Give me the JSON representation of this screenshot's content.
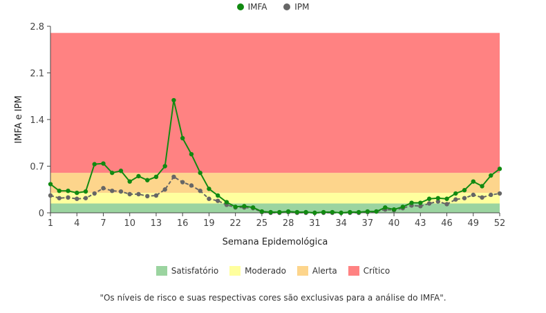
{
  "chart_data": {
    "type": "line",
    "xlabel": "Semana Epidemológica",
    "ylabel": "IMFA e IPM",
    "x_ticks": [
      1,
      4,
      7,
      10,
      13,
      16,
      19,
      22,
      25,
      28,
      31,
      34,
      37,
      40,
      43,
      46,
      49,
      52
    ],
    "y_ticks": [
      0,
      0.7,
      1.4,
      2.1,
      2.8
    ],
    "y_tick_labels": [
      "0",
      "0.7",
      "1.4",
      "2.1",
      "2.8"
    ],
    "xlim": [
      1,
      52
    ],
    "ylim": [
      0,
      2.8
    ],
    "risk_bands": [
      {
        "name": "Satisfatório",
        "from": 0,
        "to": 0.14,
        "color": "#9bd4a0"
      },
      {
        "name": "Moderado",
        "from": 0.14,
        "to": 0.3,
        "color": "#ffff9e"
      },
      {
        "name": "Alerta",
        "from": 0.3,
        "to": 0.6,
        "color": "#fdd58c"
      },
      {
        "name": "Crítico",
        "from": 0.6,
        "to": 2.7,
        "color": "#ff8282"
      }
    ],
    "series": [
      {
        "name": "IMFA",
        "color": "#118a11",
        "style": "solid",
        "x": [
          1,
          2,
          3,
          4,
          5,
          6,
          7,
          8,
          9,
          10,
          11,
          12,
          13,
          14,
          15,
          16,
          17,
          18,
          19,
          20,
          21,
          22,
          23,
          24,
          25,
          26,
          27,
          28,
          29,
          30,
          31,
          32,
          33,
          34,
          35,
          36,
          37,
          38,
          39,
          40,
          41,
          42,
          43,
          44,
          45,
          46,
          47,
          48,
          49,
          50,
          51,
          52
        ],
        "values": [
          0.43,
          0.33,
          0.33,
          0.3,
          0.32,
          0.73,
          0.74,
          0.6,
          0.63,
          0.47,
          0.55,
          0.49,
          0.54,
          0.7,
          1.69,
          1.12,
          0.88,
          0.6,
          0.36,
          0.26,
          0.16,
          0.09,
          0.1,
          0.08,
          0.02,
          0.01,
          0.01,
          0.02,
          0.01,
          0.01,
          0.0,
          0.01,
          0.01,
          0.0,
          0.01,
          0.01,
          0.02,
          0.02,
          0.08,
          0.05,
          0.09,
          0.15,
          0.15,
          0.21,
          0.22,
          0.21,
          0.29,
          0.34,
          0.47,
          0.4,
          0.56,
          0.66
        ]
      },
      {
        "name": "IPM",
        "color": "#666666",
        "style": "dashed",
        "x": [
          1,
          2,
          3,
          4,
          5,
          6,
          7,
          8,
          9,
          10,
          11,
          12,
          13,
          14,
          15,
          16,
          17,
          18,
          19,
          20,
          21,
          22,
          23,
          24,
          25,
          26,
          27,
          28,
          29,
          30,
          31,
          32,
          33,
          34,
          35,
          36,
          37,
          38,
          39,
          40,
          41,
          42,
          43,
          44,
          45,
          46,
          47,
          48,
          49,
          50,
          51,
          52
        ],
        "values": [
          0.26,
          0.22,
          0.23,
          0.21,
          0.22,
          0.29,
          0.37,
          0.33,
          0.32,
          0.28,
          0.28,
          0.25,
          0.26,
          0.35,
          0.54,
          0.46,
          0.41,
          0.33,
          0.21,
          0.18,
          0.12,
          0.08,
          0.08,
          0.07,
          0.01,
          0.0,
          0.0,
          0.01,
          0.0,
          0.0,
          0.0,
          0.0,
          0.0,
          0.0,
          0.0,
          0.0,
          0.01,
          0.02,
          0.05,
          0.04,
          0.07,
          0.11,
          0.1,
          0.14,
          0.17,
          0.13,
          0.2,
          0.22,
          0.27,
          0.23,
          0.27,
          0.29
        ]
      }
    ],
    "legend_top": [
      {
        "label": "IMFA",
        "color": "#118a11"
      },
      {
        "label": "IPM",
        "color": "#666666"
      }
    ],
    "legend_bottom": [
      {
        "label": "Satisfatório",
        "color": "#9bd4a0"
      },
      {
        "label": "Moderado",
        "color": "#ffff9e"
      },
      {
        "label": "Alerta",
        "color": "#fdd58c"
      },
      {
        "label": "Crítico",
        "color": "#ff8282"
      }
    ],
    "note": "\"Os níveis de risco e suas respectivas cores são exclusivas para a análise do IMFA\"."
  }
}
